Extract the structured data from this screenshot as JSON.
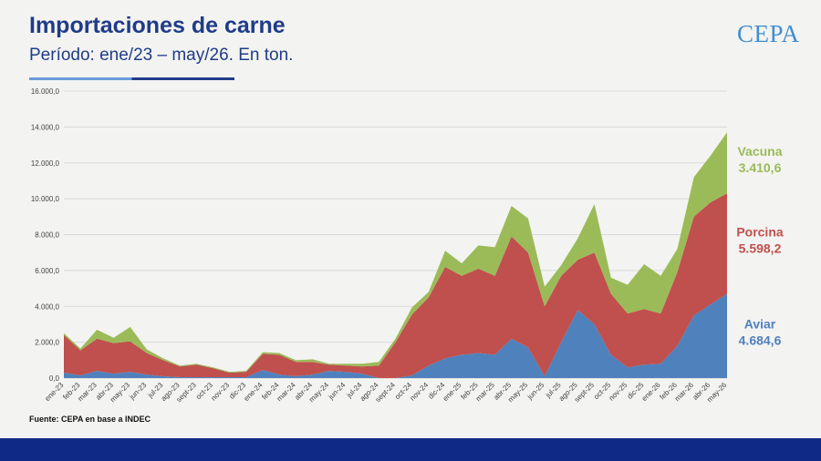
{
  "header": {
    "title": "Importaciones de carne",
    "subtitle": "Período: ene/23 – may/26. En ton.",
    "logo_text": "CEPA"
  },
  "footer": {
    "source": "Fuente: CEPA en base a INDEC"
  },
  "colors": {
    "aviar": "#4f81bd",
    "porcina": "#c0504d",
    "vacuna": "#9bbb59",
    "title": "#1f3c88",
    "band": "#0f2a86"
  },
  "chart_data": {
    "type": "area",
    "stacked": true,
    "ylim": [
      0,
      16000
    ],
    "yticks": [
      0,
      2000,
      4000,
      6000,
      8000,
      10000,
      12000,
      14000,
      16000
    ],
    "ytick_labels": [
      "0,0",
      "2.000,0",
      "4.000,0",
      "6.000,0",
      "8.000,0",
      "10.000,0",
      "12.000,0",
      "14.000,0",
      "16.000,0"
    ],
    "grid": true,
    "legend": "inline-right",
    "categories": [
      "ene-23",
      "feb-23",
      "mar-23",
      "abr-23",
      "may-23",
      "jun-23",
      "jul-23",
      "ago-23",
      "sept-23",
      "oct-23",
      "nov-23",
      "dic-23",
      "ene-24",
      "feb-24",
      "mar-24",
      "abr-24",
      "may-24",
      "jun-24",
      "jul-24",
      "ago-24",
      "sept-24",
      "oct-24",
      "nov-24",
      "dic-24",
      "ene-25",
      "feb-25",
      "mar-25",
      "abr-25",
      "may-25",
      "jun-25",
      "jul-25",
      "ago-25",
      "sept-25",
      "oct-25",
      "nov-25",
      "dic-25",
      "ene-26",
      "feb-26",
      "mar-26",
      "abr-26",
      "may-26"
    ],
    "series": [
      {
        "name": "Aviar",
        "label_value": "4.684,6",
        "values": [
          300,
          150,
          400,
          250,
          350,
          200,
          100,
          50,
          50,
          50,
          50,
          50,
          450,
          200,
          100,
          200,
          400,
          350,
          250,
          0,
          0,
          150,
          700,
          1100,
          1300,
          1400,
          1300,
          2200,
          1700,
          100,
          2000,
          3800,
          3000,
          1300,
          600,
          750,
          800,
          1800,
          3500,
          4100,
          4700
        ]
      },
      {
        "name": "Porcina",
        "label_value": "5.598,2",
        "values": [
          2100,
          1400,
          1800,
          1700,
          1700,
          1200,
          900,
          600,
          700,
          500,
          250,
          300,
          900,
          1100,
          800,
          700,
          350,
          350,
          400,
          700,
          2000,
          3400,
          3800,
          5100,
          4400,
          4700,
          4400,
          5700,
          5300,
          3900,
          3700,
          2800,
          4000,
          3400,
          3000,
          3100,
          2800,
          4100,
          5500,
          5700,
          5600
        ]
      },
      {
        "name": "Vacuna",
        "label_value": "3.410,6",
        "values": [
          100,
          100,
          500,
          300,
          800,
          200,
          100,
          50,
          50,
          50,
          50,
          50,
          100,
          100,
          100,
          150,
          50,
          100,
          150,
          200,
          200,
          400,
          300,
          900,
          700,
          1300,
          1600,
          1700,
          1900,
          1100,
          600,
          1200,
          2700,
          900,
          1600,
          2500,
          2100,
          1300,
          2200,
          2600,
          3400
        ]
      }
    ]
  }
}
